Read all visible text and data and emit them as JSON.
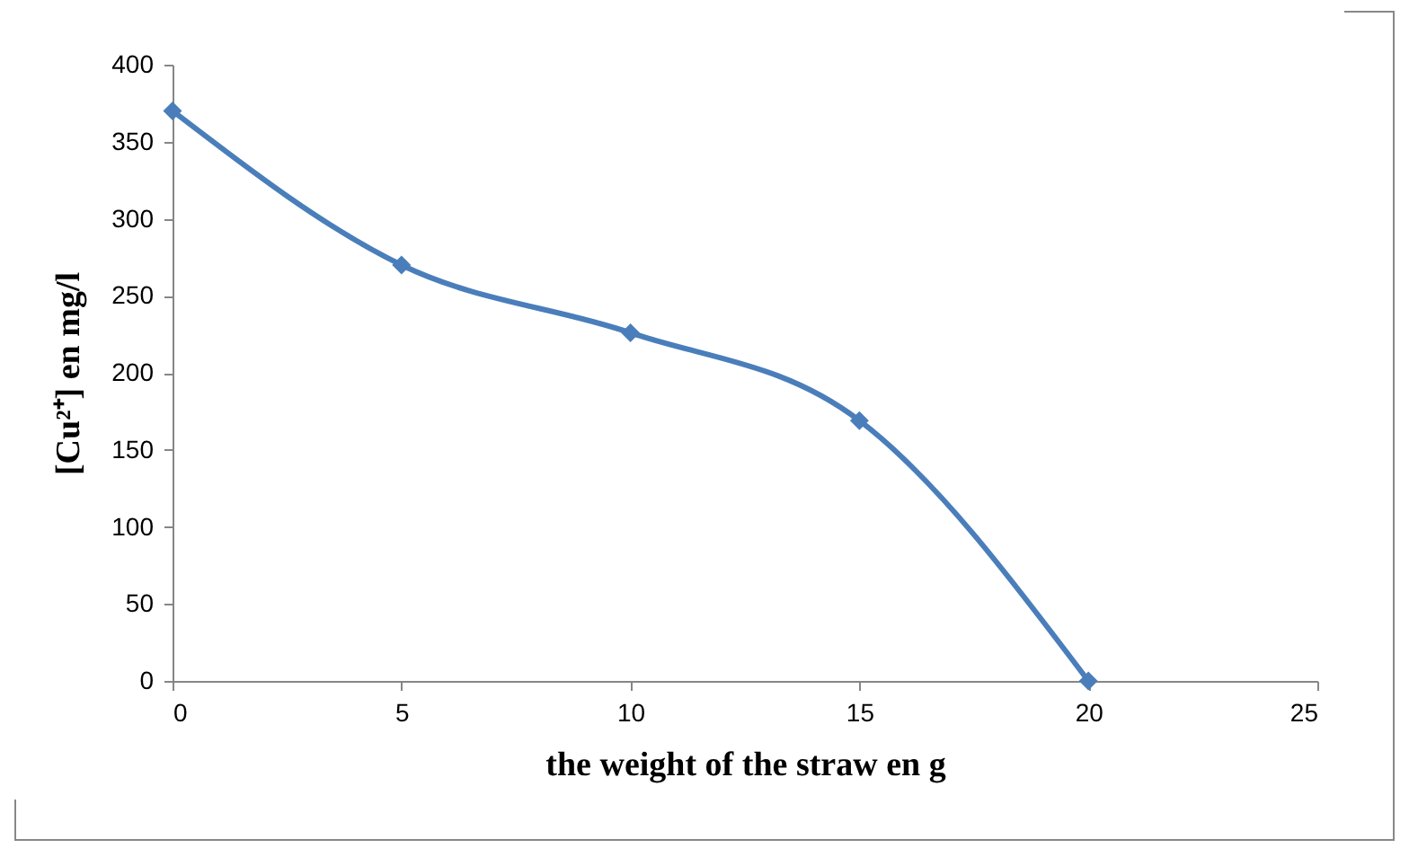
{
  "chart_data": {
    "type": "line",
    "xlabel": "the weight of the straw en g",
    "ylabel": "[Cu²⁺] en mg/l",
    "x": [
      0,
      5,
      10,
      15,
      20
    ],
    "series": [
      {
        "color": "#4a7ebb",
        "values": [
          370,
          270,
          226,
          169,
          0
        ]
      }
    ],
    "xlim": [
      0,
      25
    ],
    "xticks": [
      0,
      5,
      10,
      15,
      20,
      25
    ],
    "ylim": [
      0,
      400
    ],
    "yticks": [
      0,
      50,
      100,
      150,
      200,
      250,
      300,
      350,
      400
    ],
    "grid": false,
    "marker": "diamond",
    "line_style": "solid"
  }
}
